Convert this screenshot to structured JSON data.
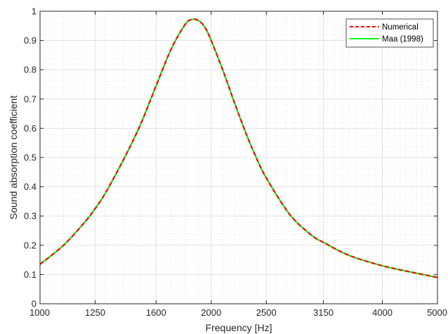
{
  "chart_data": {
    "type": "line",
    "xlabel": "Frequency [Hz]",
    "ylabel": "Sound absorption coefficient",
    "x_scale": "log",
    "xlim": [
      1000,
      5000
    ],
    "ylim": [
      0,
      1
    ],
    "x_ticks": [
      1000,
      1250,
      1600,
      2000,
      2500,
      3150,
      4000,
      5000
    ],
    "x_tick_labels": [
      "1000",
      "1250",
      "1600",
      "2000",
      "2500",
      "3150",
      "4000",
      "5000"
    ],
    "y_ticks": [
      0,
      0.1,
      0.2,
      0.3,
      0.4,
      0.5,
      0.6,
      0.7,
      0.8,
      0.9,
      1
    ],
    "y_tick_labels": [
      "0",
      "0.1",
      "0.2",
      "0.3",
      "0.4",
      "0.5",
      "0.6",
      "0.7",
      "0.8",
      "0.9",
      "1"
    ],
    "grid": true,
    "minor_grid": true,
    "legend_position": "top-right",
    "x": [
      1000,
      1100,
      1200,
      1250,
      1300,
      1400,
      1500,
      1600,
      1700,
      1800,
      1850,
      1900,
      1950,
      2000,
      2100,
      2200,
      2300,
      2400,
      2500,
      2750,
      3000,
      3150,
      3500,
      4000,
      4500,
      5000
    ],
    "series": [
      {
        "name": "Numerical",
        "color": "#ff0000",
        "style": "dashed",
        "values": [
          0.135,
          0.2,
          0.28,
          0.325,
          0.375,
          0.49,
          0.61,
          0.745,
          0.87,
          0.955,
          0.972,
          0.968,
          0.945,
          0.9,
          0.795,
          0.685,
          0.585,
          0.5,
          0.43,
          0.305,
          0.235,
          0.21,
          0.165,
          0.13,
          0.108,
          0.09
        ]
      },
      {
        "name": "Maa (1998)",
        "color": "#00ff00",
        "style": "solid",
        "values": [
          0.135,
          0.2,
          0.28,
          0.325,
          0.375,
          0.49,
          0.61,
          0.745,
          0.87,
          0.955,
          0.972,
          0.968,
          0.945,
          0.9,
          0.795,
          0.685,
          0.585,
          0.5,
          0.43,
          0.305,
          0.235,
          0.21,
          0.165,
          0.13,
          0.108,
          0.09
        ]
      }
    ]
  }
}
